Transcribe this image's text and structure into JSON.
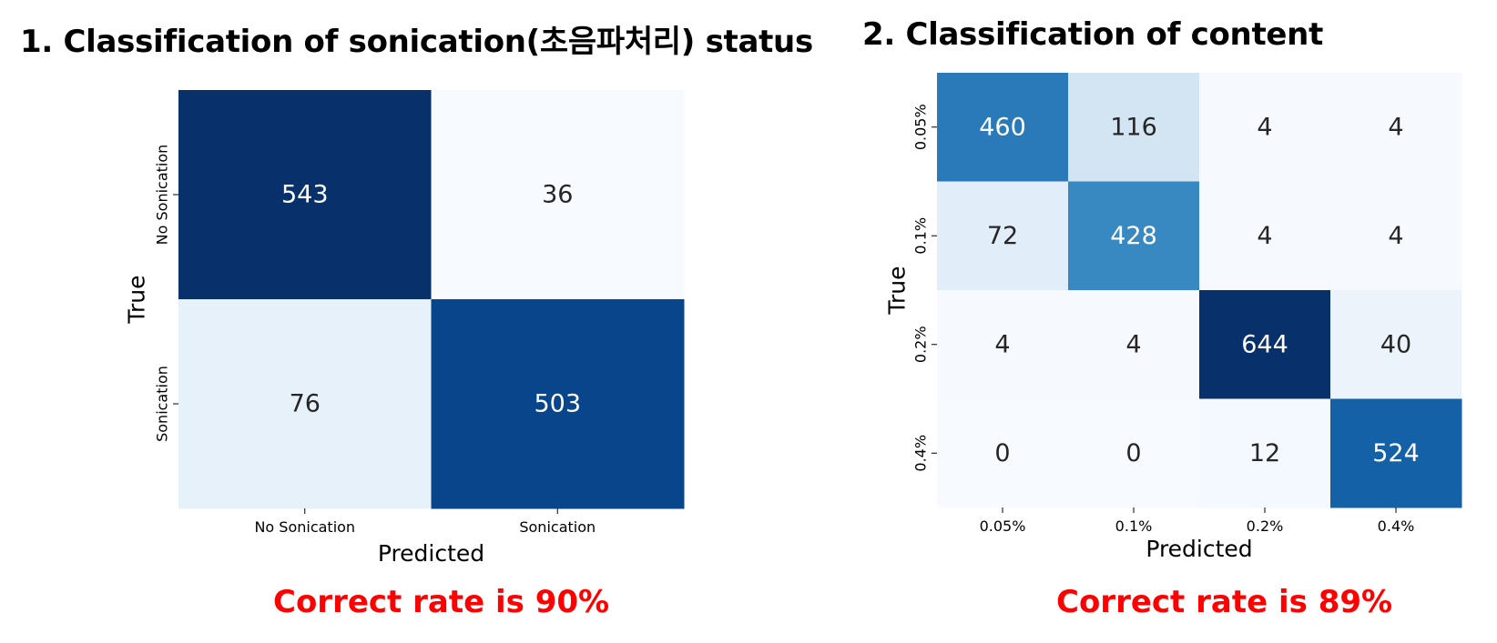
{
  "panel1": {
    "title": "1. Classification of sonication(초음파처리) status",
    "correct_rate": "Correct rate is 90%"
  },
  "panel2": {
    "title": "2. Classification of content",
    "correct_rate": "Correct rate is 89%"
  },
  "colors": {
    "accent_red": "#ff0000",
    "colormap": "Blues",
    "dark_text_threshold": 0.5
  },
  "chart_data": [
    {
      "type": "heatmap",
      "title": "1. Classification of sonication(초음파처리) status",
      "xlabel": "Predicted",
      "ylabel": "True",
      "x_categories": [
        "No Sonication",
        "Sonication"
      ],
      "y_categories": [
        "No Sonication",
        "Sonication"
      ],
      "values": [
        [
          543,
          36
        ],
        [
          76,
          503
        ]
      ],
      "colorbar": false,
      "annotated": true
    },
    {
      "type": "heatmap",
      "title": "2. Classification of content",
      "xlabel": "Predicted",
      "ylabel": "True",
      "x_categories": [
        "0.05%",
        "0.1%",
        "0.2%",
        "0.4%"
      ],
      "y_categories": [
        "0.05%",
        "0.1%",
        "0.2%",
        "0.4%"
      ],
      "values": [
        [
          460,
          116,
          4,
          4
        ],
        [
          72,
          428,
          4,
          4
        ],
        [
          4,
          4,
          644,
          40
        ],
        [
          0,
          0,
          12,
          524
        ]
      ],
      "colorbar": false,
      "annotated": true
    }
  ]
}
